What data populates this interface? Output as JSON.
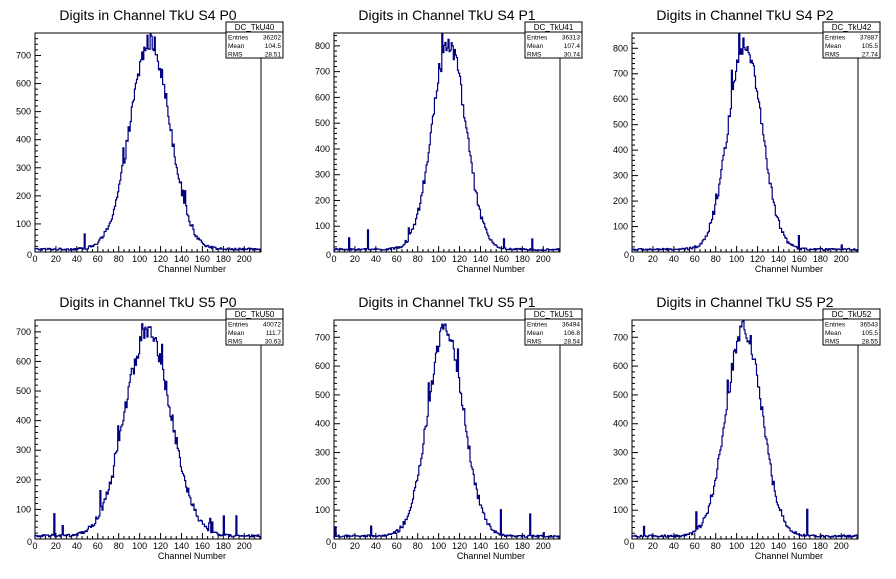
{
  "chart_data": [
    {
      "type": "histogram",
      "title": "Digits in Channel TkU S4 P0",
      "xlabel": "Channel Number",
      "xlim": [
        0,
        216
      ],
      "ylim": [
        0,
        780
      ],
      "xticks": [
        0,
        20,
        40,
        60,
        80,
        100,
        120,
        140,
        160,
        180,
        200
      ],
      "yticks": [
        100,
        200,
        300,
        400,
        500,
        600,
        700
      ],
      "stats": {
        "name": "DC_TkU40",
        "entries": "36202",
        "mean": "104.5",
        "rms": "28.51"
      },
      "shape": {
        "center": 110,
        "sigma": 19,
        "peak": 740
      }
    },
    {
      "type": "histogram",
      "title": "Digits in Channel TkU S4 P1",
      "xlabel": "Channel Number",
      "xlim": [
        0,
        216
      ],
      "ylim": [
        0,
        850
      ],
      "xticks": [
        0,
        20,
        40,
        60,
        80,
        100,
        120,
        140,
        160,
        180,
        200
      ],
      "yticks": [
        100,
        200,
        300,
        400,
        500,
        600,
        700,
        800
      ],
      "stats": {
        "name": "DC_TkU41",
        "entries": "36313",
        "mean": "107.4",
        "rms": "30.74"
      },
      "shape": {
        "center": 110,
        "sigma": 16,
        "peak": 800
      }
    },
    {
      "type": "histogram",
      "title": "Digits in Channel TkU S4 P2",
      "xlabel": "Channel Number",
      "xlim": [
        0,
        216
      ],
      "ylim": [
        0,
        860
      ],
      "xticks": [
        0,
        20,
        40,
        60,
        80,
        100,
        120,
        140,
        160,
        180,
        200
      ],
      "yticks": [
        100,
        200,
        300,
        400,
        500,
        600,
        700,
        800
      ],
      "stats": {
        "name": "DC_TkU42",
        "entries": "37887",
        "mean": "105.5",
        "rms": "27.74"
      },
      "shape": {
        "center": 108,
        "sigma": 16,
        "peak": 810
      }
    },
    {
      "type": "histogram",
      "title": "Digits in Channel TkU S5 P0",
      "xlabel": "Channel Number",
      "xlim": [
        0,
        216
      ],
      "ylim": [
        0,
        740
      ],
      "xticks": [
        0,
        20,
        40,
        60,
        80,
        100,
        120,
        140,
        160,
        180,
        200
      ],
      "yticks": [
        100,
        200,
        300,
        400,
        500,
        600,
        700
      ],
      "stats": {
        "name": "DC_TkU50",
        "entries": "40072",
        "mean": "111.7",
        "rms": "30.63"
      },
      "shape": {
        "center": 108,
        "sigma": 22,
        "peak": 690
      }
    },
    {
      "type": "histogram",
      "title": "Digits in Channel TkU S5 P1",
      "xlabel": "Channel Number",
      "xlim": [
        0,
        216
      ],
      "ylim": [
        0,
        760
      ],
      "xticks": [
        0,
        20,
        40,
        60,
        80,
        100,
        120,
        140,
        160,
        180,
        200
      ],
      "yticks": [
        100,
        200,
        300,
        400,
        500,
        600,
        700
      ],
      "stats": {
        "name": "DC_TkU51",
        "entries": "36494",
        "mean": "106.8",
        "rms": "28.54"
      },
      "shape": {
        "center": 107,
        "sigma": 17,
        "peak": 720
      }
    },
    {
      "type": "histogram",
      "title": "Digits in Channel TkU S5 P2",
      "xlabel": "Channel Number",
      "xlim": [
        0,
        216
      ],
      "ylim": [
        0,
        760
      ],
      "xticks": [
        0,
        20,
        40,
        60,
        80,
        100,
        120,
        140,
        160,
        180,
        200
      ],
      "yticks": [
        100,
        200,
        300,
        400,
        500,
        600,
        700
      ],
      "stats": {
        "name": "DC_TkU52",
        "entries": "36543",
        "mean": "105.5",
        "rms": "28.55"
      },
      "shape": {
        "center": 107,
        "sigma": 17,
        "peak": 720
      }
    }
  ],
  "stats_labels": {
    "entries": "Entries",
    "mean": "Mean",
    "rms": "RMS"
  },
  "colors": {
    "line": "#000080",
    "frame": "#000000",
    "background": "#ffffff"
  }
}
